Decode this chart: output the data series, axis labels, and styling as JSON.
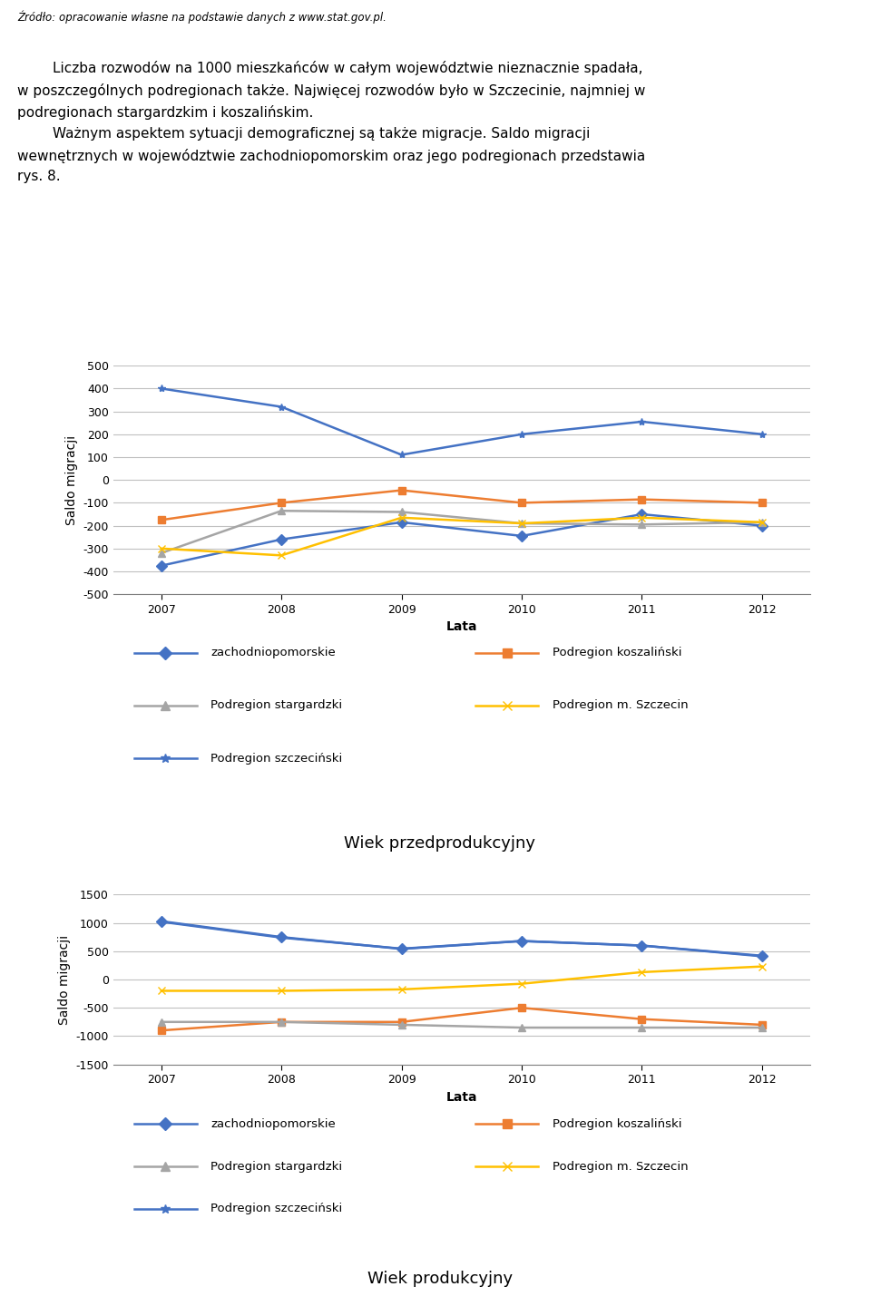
{
  "years": [
    2007,
    2008,
    2009,
    2010,
    2011,
    2012
  ],
  "chart1": {
    "title": "Wiek przedprodukcyjny",
    "ylabel": "Saldo migracji",
    "xlabel": "Lata",
    "ylim": [
      -500,
      500
    ],
    "yticks": [
      -500,
      -400,
      -300,
      -200,
      -100,
      0,
      100,
      200,
      300,
      400,
      500
    ],
    "series": {
      "zachodniopomorskie": [
        -375,
        -260,
        -185,
        -245,
        -150,
        -200
      ],
      "Podregion koszaliński": [
        -175,
        -100,
        -45,
        -100,
        -85,
        -100
      ],
      "Podregion stargardzki": [
        -320,
        -135,
        -140,
        -190,
        -195,
        -185
      ],
      "Podregion m. Szczecin": [
        -300,
        -330,
        -165,
        -190,
        -165,
        -185
      ],
      "Podregion szczeciński": [
        400,
        320,
        110,
        200,
        255,
        200
      ]
    }
  },
  "chart2": {
    "title": "Wiek produkcyjny",
    "ylabel": "Saldo migracji",
    "xlabel": "Lata",
    "ylim": [
      -1500,
      1500
    ],
    "yticks": [
      -1500,
      -1000,
      -500,
      0,
      500,
      1000,
      1500
    ],
    "series": {
      "zachodniopomorskie": [
        1030,
        750,
        540,
        680,
        600,
        420
      ],
      "Podregion koszaliński": [
        -900,
        -750,
        -750,
        -500,
        -700,
        -800
      ],
      "Podregion stargardzki": [
        -750,
        -750,
        -800,
        -850,
        -850,
        -850
      ],
      "Podregion m. Szczecin": [
        -200,
        -200,
        -175,
        -75,
        130,
        230
      ],
      "Podregion szczeciński": [
        1020,
        740,
        545,
        680,
        600,
        410
      ]
    }
  },
  "colors": {
    "zachodniopomorskie": "#4472C4",
    "Podregion koszaliński": "#ED7D31",
    "Podregion stargardzki": "#A5A5A5",
    "Podregion m. Szczecin": "#FFC000",
    "Podregion szczeciński": "#4472C4"
  },
  "markers": {
    "zachodniopomorskie": "D",
    "Podregion koszaliński": "s",
    "Podregion stargardzki": "^",
    "Podregion m. Szczecin": "x",
    "Podregion szczeciński": "*"
  },
  "source_line": "Źródło: opracowanie własne na podstawie danych z www.stat.gov.pl.",
  "body_text": "        Liczba rozwodów na 1000 mieszkańców w całym województwie nieznacznie spadała,\nw poszczególnych podregionach także. Najwięcej rozwodów było w Szczecinie, najmniej w\npodregionach stargardzkim i koszalińskim.\n        Ważnym aspektem sytuacji demograficznej są także migracje. Saldo migracji\nwewnętrznych w województwie zachodniopomorskim oraz jego podregionach przedstawia\nrys. 8.",
  "background_color": "#FFFFFF",
  "plot_bg_color": "#FFFFFF",
  "grid_color": "#C0C0C0",
  "marker_size": 6,
  "line_width": 1.8,
  "legend_items": [
    "zachodniopomorskie",
    "Podregion koszaliński",
    "Podregion stargardzki",
    "Podregion m. Szczecin",
    "Podregion szczeciński"
  ]
}
